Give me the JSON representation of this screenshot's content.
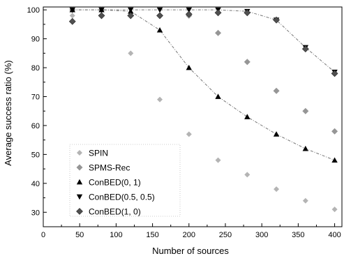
{
  "chart_data": {
    "type": "scatter",
    "title": "",
    "xlabel": "Number of sources",
    "ylabel": "Average success ratio (%)",
    "xlim": [
      0,
      410
    ],
    "ylim": [
      25,
      101
    ],
    "xticks": [
      0,
      50,
      100,
      150,
      200,
      250,
      300,
      350,
      400
    ],
    "yticks": [
      30,
      40,
      50,
      60,
      70,
      80,
      90,
      100
    ],
    "grid": false,
    "legend_position": "bottom-left",
    "series": [
      {
        "name": "SPIN",
        "marker": "light-diamond",
        "color": "#b4b4b4",
        "line": false,
        "x": [
          40,
          80,
          120,
          160,
          200,
          240,
          280,
          320,
          360,
          400
        ],
        "y": [
          98,
          98,
          85,
          69,
          57,
          48,
          43,
          38,
          34,
          31
        ]
      },
      {
        "name": "SPMS-Rec",
        "marker": "medium-diamond",
        "color": "#969696",
        "line": false,
        "x": [
          40,
          80,
          120,
          160,
          200,
          240,
          280,
          320,
          360,
          400
        ],
        "y": [
          100,
          100,
          98,
          98,
          98,
          92,
          82,
          72,
          65,
          58
        ]
      },
      {
        "name": "ConBED(0, 1)",
        "marker": "triangle-up",
        "color": "#000000",
        "line": true,
        "x": [
          40,
          80,
          120,
          160,
          200,
          240,
          280,
          320,
          360,
          400
        ],
        "y": [
          100,
          100,
          99.5,
          93,
          80,
          70,
          63,
          57,
          52,
          48
        ]
      },
      {
        "name": "ConBED(0.5, 0.5)",
        "marker": "triangle-down",
        "color": "#000000",
        "line": true,
        "x": [
          40,
          80,
          120,
          160,
          200,
          240,
          280,
          320,
          360,
          400
        ],
        "y": [
          100,
          100,
          100,
          100,
          100,
          100,
          99.5,
          96.5,
          87,
          78.5
        ]
      },
      {
        "name": "ConBED(1, 0)",
        "marker": "dark-diamond",
        "color": "#505050",
        "line": false,
        "x": [
          40,
          80,
          120,
          160,
          200,
          240,
          280,
          320,
          360,
          400
        ],
        "y": [
          96,
          98,
          98,
          98,
          98.5,
          99,
          99,
          96.5,
          86.5,
          78
        ]
      }
    ]
  }
}
